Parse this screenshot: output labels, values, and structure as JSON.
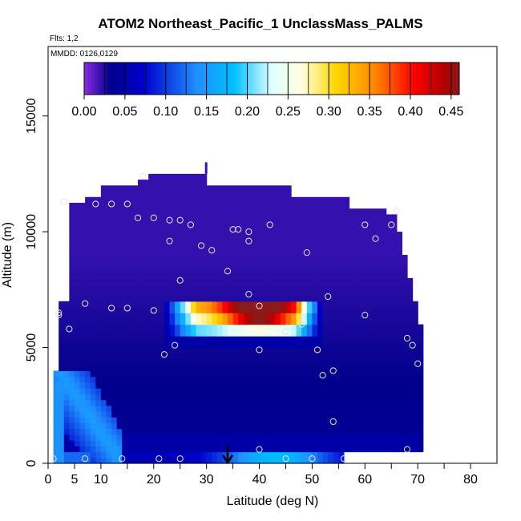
{
  "title": "ATOM2 Northeast_Pacific_1 UnclassMass_PALMS",
  "flights_label": "Flts: 1,2",
  "mmdd_label": "MMDD: 0126,0129",
  "chart_data": {
    "type": "heatmap",
    "xlabel": "Latitude (deg N)",
    "ylabel": "Altitude (m)",
    "xlim": [
      0,
      85
    ],
    "ylim": [
      0,
      18000
    ],
    "x_ticks": [
      0,
      5,
      10,
      20,
      30,
      40,
      50,
      60,
      70,
      80
    ],
    "y_ticks": [
      0,
      5000,
      10000,
      15000
    ],
    "colorbar": {
      "min": 0.0,
      "max": 0.46,
      "ticks": [
        "0.00",
        "0.05",
        "0.10",
        "0.15",
        "0.20",
        "0.25",
        "0.30",
        "0.35",
        "0.40",
        "0.45"
      ],
      "colors": [
        "#8a2be2",
        "#00008b",
        "#0000cd",
        "#1e90ff",
        "#00bfff",
        "#e0ffff",
        "#ffffe0",
        "#ffd700",
        "#ff8c00",
        "#ff0000",
        "#b00000",
        "#8b1a1a"
      ]
    },
    "background_value": 0.02,
    "features": [
      {
        "name": "plume",
        "lat_range": [
          22,
          52
        ],
        "alt_range": [
          5000,
          7000
        ],
        "peak_value": 0.46,
        "peak_lat": 41,
        "peak_alt": 6700
      },
      {
        "name": "low-level band",
        "lat_range": [
          2,
          56
        ],
        "alt_range": [
          0,
          600
        ],
        "value": 0.16
      },
      {
        "name": "diagonal low-latitude band",
        "lat_range": [
          1,
          14
        ],
        "alt_range": [
          0,
          4000
        ],
        "value": 0.14
      }
    ],
    "sample_points": [
      {
        "lat": 1,
        "alt": 200
      },
      {
        "lat": 7,
        "alt": 200
      },
      {
        "lat": 14,
        "alt": 200
      },
      {
        "lat": 21,
        "alt": 200
      },
      {
        "lat": 25,
        "alt": 200
      },
      {
        "lat": 45,
        "alt": 200
      },
      {
        "lat": 50,
        "alt": 200
      },
      {
        "lat": 56,
        "alt": 200
      },
      {
        "lat": 40,
        "alt": 600
      },
      {
        "lat": 68,
        "alt": 600
      },
      {
        "lat": 54,
        "alt": 1800
      },
      {
        "lat": 52,
        "alt": 3800
      },
      {
        "lat": 54,
        "alt": 4000
      },
      {
        "lat": 70,
        "alt": 4300
      },
      {
        "lat": 22,
        "alt": 4700
      },
      {
        "lat": 40,
        "alt": 4900
      },
      {
        "lat": 51,
        "alt": 4900
      },
      {
        "lat": 24,
        "alt": 5100
      },
      {
        "lat": 68,
        "alt": 5400
      },
      {
        "lat": 69,
        "alt": 5100
      },
      {
        "lat": 4,
        "alt": 5800
      },
      {
        "lat": 45,
        "alt": 5700
      },
      {
        "lat": 48,
        "alt": 6000
      },
      {
        "lat": 2,
        "alt": 6500
      },
      {
        "lat": 2,
        "alt": 6400
      },
      {
        "lat": 60,
        "alt": 6400
      },
      {
        "lat": 7,
        "alt": 6900
      },
      {
        "lat": 12,
        "alt": 6700
      },
      {
        "lat": 15,
        "alt": 6700
      },
      {
        "lat": 20,
        "alt": 6600
      },
      {
        "lat": 40,
        "alt": 6800
      },
      {
        "lat": 38,
        "alt": 7300
      },
      {
        "lat": 53,
        "alt": 7200
      },
      {
        "lat": 25,
        "alt": 7900
      },
      {
        "lat": 34,
        "alt": 8300
      },
      {
        "lat": 49,
        "alt": 9100
      },
      {
        "lat": 29,
        "alt": 9400
      },
      {
        "lat": 31,
        "alt": 9200
      },
      {
        "lat": 23,
        "alt": 9600
      },
      {
        "lat": 38,
        "alt": 9600
      },
      {
        "lat": 35,
        "alt": 10100
      },
      {
        "lat": 36,
        "alt": 10100
      },
      {
        "lat": 38,
        "alt": 10000
      },
      {
        "lat": 42,
        "alt": 10300
      },
      {
        "lat": 62,
        "alt": 9700
      },
      {
        "lat": 60,
        "alt": 10300
      },
      {
        "lat": 65,
        "alt": 10300
      },
      {
        "lat": 17,
        "alt": 10600
      },
      {
        "lat": 20,
        "alt": 10600
      },
      {
        "lat": 23,
        "alt": 10500
      },
      {
        "lat": 25,
        "alt": 10500
      },
      {
        "lat": 27,
        "alt": 10300
      },
      {
        "lat": 3,
        "alt": 11300
      },
      {
        "lat": 9,
        "alt": 11200
      },
      {
        "lat": 12,
        "alt": 11200
      },
      {
        "lat": 15,
        "alt": 11200
      },
      {
        "lat": 18,
        "alt": 12400
      },
      {
        "lat": 66,
        "alt": 10900
      }
    ],
    "marker": {
      "lat": 34,
      "label": "arrow"
    }
  }
}
